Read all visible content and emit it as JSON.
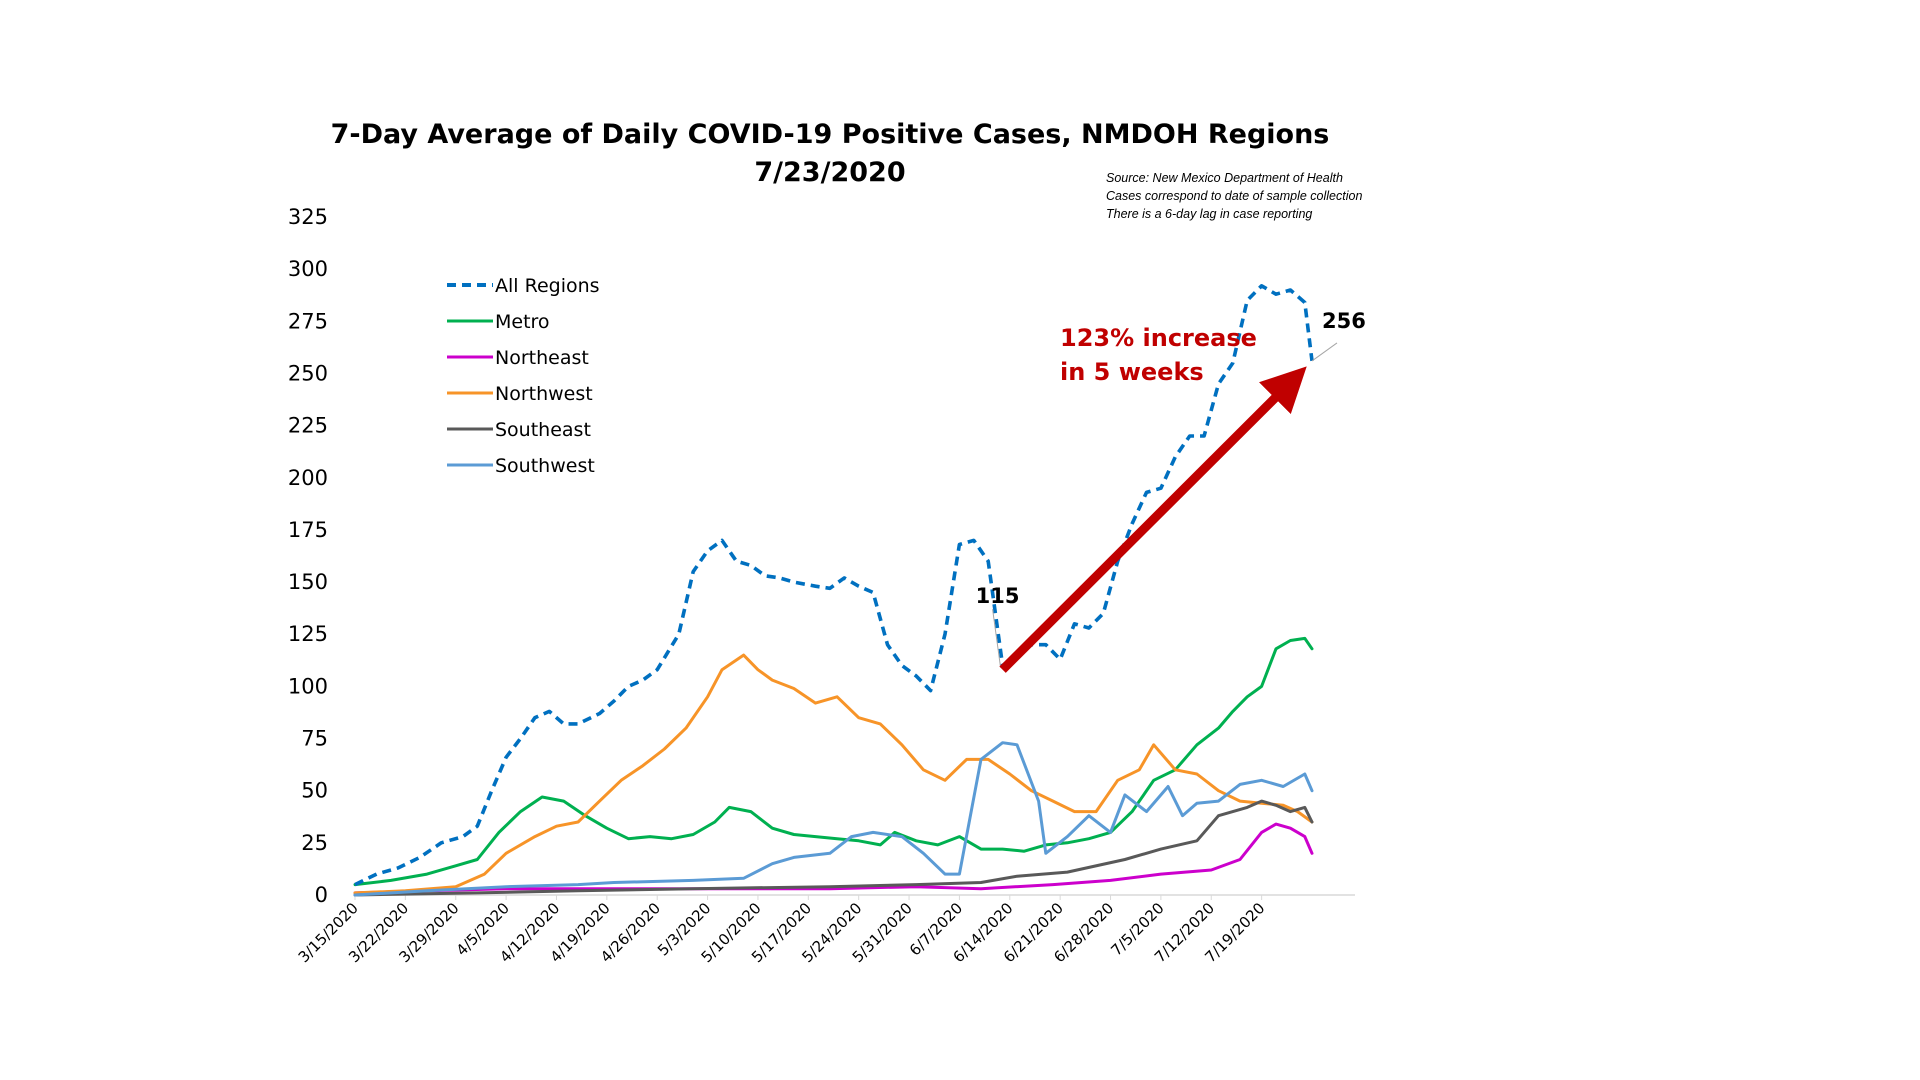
{
  "chart_data": {
    "type": "line",
    "title": "7-Day Average of Daily COVID-19 Positive Cases, NMDOH Regions",
    "subtitle": "7/23/2020",
    "source_notes": [
      "Source: New Mexico Department of Health",
      "Cases correspond to date of sample collection",
      "There is a 6-day lag in case reporting"
    ],
    "xlabel": "",
    "ylabel": "",
    "ylim": [
      0,
      325
    ],
    "yticks": [
      0,
      25,
      50,
      75,
      100,
      125,
      150,
      175,
      200,
      225,
      250,
      275,
      300,
      325
    ],
    "x_start": "3/15/2020",
    "x_tick_labels": [
      "3/15/2020",
      "3/22/2020",
      "3/29/2020",
      "4/5/2020",
      "4/12/2020",
      "4/19/2020",
      "4/26/2020",
      "5/3/2020",
      "5/10/2020",
      "5/17/2020",
      "5/24/2020",
      "5/31/2020",
      "6/7/2020",
      "6/14/2020",
      "6/21/2020",
      "6/28/2020",
      "7/5/2020",
      "7/12/2020",
      "7/19/2020"
    ],
    "grid": false,
    "legend_position": "top-left",
    "series": [
      {
        "name": "All Regions",
        "color": "#0070c0",
        "style": "dashed",
        "points": [
          [
            "3/15/2020",
            5
          ],
          [
            "3/18/2020",
            10
          ],
          [
            "3/21/2020",
            13
          ],
          [
            "3/24/2020",
            18
          ],
          [
            "3/27/2020",
            25
          ],
          [
            "3/30/2020",
            28
          ],
          [
            "4/1/2020",
            33
          ],
          [
            "4/3/2020",
            50
          ],
          [
            "4/5/2020",
            66
          ],
          [
            "4/7/2020",
            75
          ],
          [
            "4/9/2020",
            85
          ],
          [
            "4/11/2020",
            88
          ],
          [
            "4/13/2020",
            82
          ],
          [
            "4/15/2020",
            82
          ],
          [
            "4/18/2020",
            87
          ],
          [
            "4/20/2020",
            93
          ],
          [
            "4/22/2020",
            100
          ],
          [
            "4/24/2020",
            103
          ],
          [
            "4/26/2020",
            108
          ],
          [
            "4/29/2020",
            125
          ],
          [
            "5/1/2020",
            155
          ],
          [
            "5/3/2020",
            165
          ],
          [
            "5/5/2020",
            170
          ],
          [
            "5/7/2020",
            160
          ],
          [
            "5/9/2020",
            158
          ],
          [
            "5/11/2020",
            153
          ],
          [
            "5/13/2020",
            152
          ],
          [
            "5/15/2020",
            150
          ],
          [
            "5/18/2020",
            148
          ],
          [
            "5/20/2020",
            147
          ],
          [
            "5/22/2020",
            152
          ],
          [
            "5/24/2020",
            148
          ],
          [
            "5/26/2020",
            145
          ],
          [
            "5/28/2020",
            120
          ],
          [
            "5/30/2020",
            110
          ],
          [
            "6/1/2020",
            105
          ],
          [
            "6/3/2020",
            98
          ],
          [
            "6/5/2020",
            125
          ],
          [
            "6/7/2020",
            168
          ],
          [
            "6/9/2020",
            170
          ],
          [
            "6/11/2020",
            160
          ],
          [
            "6/13/2020",
            110
          ],
          [
            "6/15/2020",
            115
          ],
          [
            "6/17/2020",
            120
          ],
          [
            "6/19/2020",
            120
          ],
          [
            "6/21/2020",
            113
          ],
          [
            "6/23/2020",
            130
          ],
          [
            "6/25/2020",
            128
          ],
          [
            "6/27/2020",
            135
          ],
          [
            "6/29/2020",
            160
          ],
          [
            "7/1/2020",
            178
          ],
          [
            "7/3/2020",
            193
          ],
          [
            "7/5/2020",
            195
          ],
          [
            "7/7/2020",
            210
          ],
          [
            "7/9/2020",
            220
          ],
          [
            "7/11/2020",
            220
          ],
          [
            "7/13/2020",
            245
          ],
          [
            "7/15/2020",
            255
          ],
          [
            "7/17/2020",
            285
          ],
          [
            "7/19/2020",
            292
          ],
          [
            "7/21/2020",
            288
          ],
          [
            "7/23/2020",
            290
          ],
          [
            "7/25/2020",
            284
          ],
          [
            "7/26/2020",
            256
          ]
        ]
      },
      {
        "name": "Metro",
        "color": "#00b050",
        "style": "solid",
        "points": [
          [
            "3/15/2020",
            5
          ],
          [
            "3/20/2020",
            7
          ],
          [
            "3/25/2020",
            10
          ],
          [
            "3/29/2020",
            14
          ],
          [
            "4/1/2020",
            17
          ],
          [
            "4/4/2020",
            30
          ],
          [
            "4/7/2020",
            40
          ],
          [
            "4/10/2020",
            47
          ],
          [
            "4/13/2020",
            45
          ],
          [
            "4/16/2020",
            38
          ],
          [
            "4/19/2020",
            32
          ],
          [
            "4/22/2020",
            27
          ],
          [
            "4/25/2020",
            28
          ],
          [
            "4/28/2020",
            27
          ],
          [
            "5/1/2020",
            29
          ],
          [
            "5/4/2020",
            35
          ],
          [
            "5/6/2020",
            42
          ],
          [
            "5/9/2020",
            40
          ],
          [
            "5/12/2020",
            32
          ],
          [
            "5/15/2020",
            29
          ],
          [
            "5/18/2020",
            28
          ],
          [
            "5/21/2020",
            27
          ],
          [
            "5/24/2020",
            26
          ],
          [
            "5/27/2020",
            24
          ],
          [
            "5/29/2020",
            30
          ],
          [
            "6/1/2020",
            26
          ],
          [
            "6/4/2020",
            24
          ],
          [
            "6/7/2020",
            28
          ],
          [
            "6/10/2020",
            22
          ],
          [
            "6/13/2020",
            22
          ],
          [
            "6/16/2020",
            21
          ],
          [
            "6/19/2020",
            24
          ],
          [
            "6/22/2020",
            25
          ],
          [
            "6/25/2020",
            27
          ],
          [
            "6/28/2020",
            30
          ],
          [
            "7/1/2020",
            40
          ],
          [
            "7/4/2020",
            55
          ],
          [
            "7/7/2020",
            60
          ],
          [
            "7/10/2020",
            72
          ],
          [
            "7/13/2020",
            80
          ],
          [
            "7/15/2020",
            88
          ],
          [
            "7/17/2020",
            95
          ],
          [
            "7/19/2020",
            100
          ],
          [
            "7/21/2020",
            118
          ],
          [
            "7/23/2020",
            122
          ],
          [
            "7/25/2020",
            123
          ],
          [
            "7/26/2020",
            118
          ]
        ]
      },
      {
        "name": "Northeast",
        "color": "#cc00cc",
        "style": "solid",
        "points": [
          [
            "3/15/2020",
            1
          ],
          [
            "3/25/2020",
            2
          ],
          [
            "4/5/2020",
            3
          ],
          [
            "4/20/2020",
            3
          ],
          [
            "5/5/2020",
            3
          ],
          [
            "5/20/2020",
            3
          ],
          [
            "6/1/2020",
            4
          ],
          [
            "6/10/2020",
            3
          ],
          [
            "6/20/2020",
            5
          ],
          [
            "6/28/2020",
            7
          ],
          [
            "7/5/2020",
            10
          ],
          [
            "7/12/2020",
            12
          ],
          [
            "7/16/2020",
            17
          ],
          [
            "7/19/2020",
            30
          ],
          [
            "7/21/2020",
            34
          ],
          [
            "7/23/2020",
            32
          ],
          [
            "7/25/2020",
            28
          ],
          [
            "7/26/2020",
            20
          ]
        ]
      },
      {
        "name": "Northwest",
        "color": "#f79428",
        "style": "solid",
        "points": [
          [
            "3/15/2020",
            1
          ],
          [
            "3/22/2020",
            2
          ],
          [
            "3/29/2020",
            4
          ],
          [
            "4/2/2020",
            10
          ],
          [
            "4/5/2020",
            20
          ],
          [
            "4/9/2020",
            28
          ],
          [
            "4/12/2020",
            33
          ],
          [
            "4/15/2020",
            35
          ],
          [
            "4/18/2020",
            45
          ],
          [
            "4/21/2020",
            55
          ],
          [
            "4/24/2020",
            62
          ],
          [
            "4/27/2020",
            70
          ],
          [
            "4/30/2020",
            80
          ],
          [
            "5/3/2020",
            95
          ],
          [
            "5/5/2020",
            108
          ],
          [
            "5/8/2020",
            115
          ],
          [
            "5/10/2020",
            108
          ],
          [
            "5/12/2020",
            103
          ],
          [
            "5/15/2020",
            99
          ],
          [
            "5/18/2020",
            92
          ],
          [
            "5/21/2020",
            95
          ],
          [
            "5/24/2020",
            85
          ],
          [
            "5/27/2020",
            82
          ],
          [
            "5/30/2020",
            72
          ],
          [
            "6/2/2020",
            60
          ],
          [
            "6/5/2020",
            55
          ],
          [
            "6/8/2020",
            65
          ],
          [
            "6/11/2020",
            65
          ],
          [
            "6/14/2020",
            58
          ],
          [
            "6/17/2020",
            50
          ],
          [
            "6/20/2020",
            45
          ],
          [
            "6/23/2020",
            40
          ],
          [
            "6/26/2020",
            40
          ],
          [
            "6/29/2020",
            55
          ],
          [
            "7/2/2020",
            60
          ],
          [
            "7/4/2020",
            72
          ],
          [
            "7/7/2020",
            60
          ],
          [
            "7/10/2020",
            58
          ],
          [
            "7/13/2020",
            50
          ],
          [
            "7/16/2020",
            45
          ],
          [
            "7/19/2020",
            44
          ],
          [
            "7/22/2020",
            43
          ],
          [
            "7/24/2020",
            40
          ],
          [
            "7/26/2020",
            35
          ]
        ]
      },
      {
        "name": "Southeast",
        "color": "#595959",
        "style": "solid",
        "points": [
          [
            "3/15/2020",
            0
          ],
          [
            "4/1/2020",
            1
          ],
          [
            "4/15/2020",
            2
          ],
          [
            "5/1/2020",
            3
          ],
          [
            "5/20/2020",
            4
          ],
          [
            "6/1/2020",
            5
          ],
          [
            "6/10/2020",
            6
          ],
          [
            "6/15/2020",
            9
          ],
          [
            "6/22/2020",
            11
          ],
          [
            "6/30/2020",
            17
          ],
          [
            "7/5/2020",
            22
          ],
          [
            "7/10/2020",
            26
          ],
          [
            "7/13/2020",
            38
          ],
          [
            "7/17/2020",
            42
          ],
          [
            "7/19/2020",
            45
          ],
          [
            "7/21/2020",
            43
          ],
          [
            "7/23/2020",
            40
          ],
          [
            "7/25/2020",
            42
          ],
          [
            "7/26/2020",
            35
          ]
        ]
      },
      {
        "name": "Southwest",
        "color": "#5b9bd5",
        "style": "solid",
        "points": [
          [
            "3/15/2020",
            0
          ],
          [
            "3/25/2020",
            2
          ],
          [
            "4/5/2020",
            4
          ],
          [
            "4/15/2020",
            5
          ],
          [
            "4/20/2020",
            6
          ],
          [
            "5/1/2020",
            7
          ],
          [
            "5/8/2020",
            8
          ],
          [
            "5/12/2020",
            15
          ],
          [
            "5/15/2020",
            18
          ],
          [
            "5/20/2020",
            20
          ],
          [
            "5/23/2020",
            28
          ],
          [
            "5/26/2020",
            30
          ],
          [
            "5/30/2020",
            28
          ],
          [
            "6/2/2020",
            20
          ],
          [
            "6/5/2020",
            10
          ],
          [
            "6/7/2020",
            10
          ],
          [
            "6/10/2020",
            65
          ],
          [
            "6/13/2020",
            73
          ],
          [
            "6/15/2020",
            72
          ],
          [
            "6/18/2020",
            45
          ],
          [
            "6/19/2020",
            20
          ],
          [
            "6/22/2020",
            28
          ],
          [
            "6/25/2020",
            38
          ],
          [
            "6/28/2020",
            30
          ],
          [
            "6/30/2020",
            48
          ],
          [
            "7/3/2020",
            40
          ],
          [
            "7/6/2020",
            52
          ],
          [
            "7/8/2020",
            38
          ],
          [
            "7/10/2020",
            44
          ],
          [
            "7/13/2020",
            45
          ],
          [
            "7/16/2020",
            53
          ],
          [
            "7/19/2020",
            55
          ],
          [
            "7/22/2020",
            52
          ],
          [
            "7/25/2020",
            58
          ],
          [
            "7/26/2020",
            50
          ]
        ]
      }
    ],
    "annotations": [
      {
        "text": "115",
        "x": "6/13/2020",
        "y": 115
      },
      {
        "text": "256",
        "x": "7/26/2020",
        "y": 256
      },
      {
        "text_lines": [
          "123% increase",
          "in 5 weeks"
        ],
        "color": "#c00000",
        "arrow_from": {
          "x": "6/13/2020",
          "y": 108
        },
        "arrow_to": {
          "x": "7/25/2020",
          "y": 252
        }
      }
    ]
  }
}
